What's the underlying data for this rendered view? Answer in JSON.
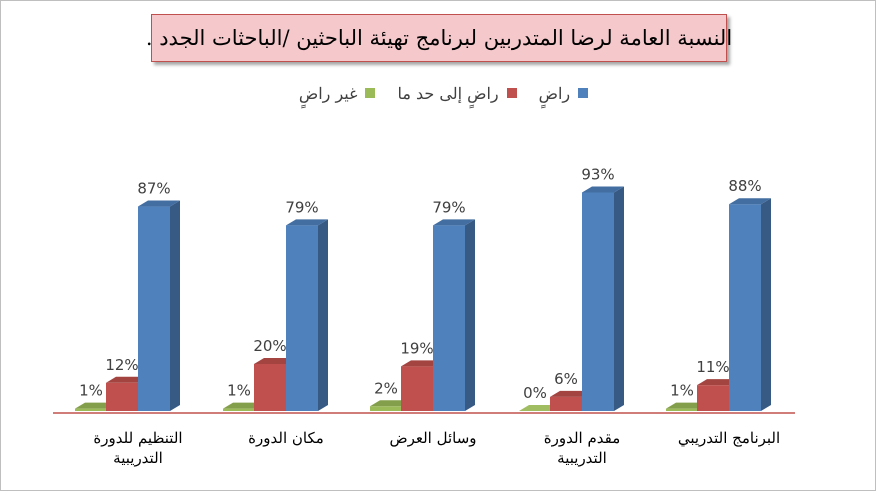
{
  "chart_data": {
    "type": "bar",
    "title": "النسبة العامة لرضا المتدربين لبرنامج تهيئة الباحثين /الباحثات الجدد .",
    "categories": [
      "البرنامج التدريبي",
      "مقدم الدورة التدريبية",
      "وسائل العرض",
      "مكان الدورة",
      "التنظيم للدورة التدريبية"
    ],
    "category_label_lines": [
      [
        "البرنامج التدريبي"
      ],
      [
        "مقدم الدورة التدريبية"
      ],
      [
        "وسائل العرض"
      ],
      [
        "مكان الدورة"
      ],
      [
        "التنظيم للدورة",
        "التدريبية"
      ]
    ],
    "series": [
      {
        "name": "راضٍ",
        "color": "#4f81bd",
        "values": [
          88,
          93,
          79,
          79,
          87
        ],
        "labels": [
          "88%",
          "93%",
          "79%",
          "79%",
          "87%"
        ]
      },
      {
        "name": "راضٍ إلى حد ما",
        "color": "#c0504d",
        "values": [
          11,
          6,
          19,
          20,
          12
        ],
        "labels": [
          "11%",
          "6%",
          "19%",
          "20%",
          "12%"
        ]
      },
      {
        "name": "غير راضٍ",
        "color": "#9bbb59",
        "values": [
          1,
          0,
          2,
          1,
          1
        ],
        "labels": [
          "1%",
          "0%",
          "2%",
          "1%",
          "1%"
        ]
      }
    ],
    "category_order": "right-to-left",
    "ylim": [
      0,
      100
    ],
    "grid": false,
    "legend_position": "top",
    "style": "3d-clustered-column"
  }
}
